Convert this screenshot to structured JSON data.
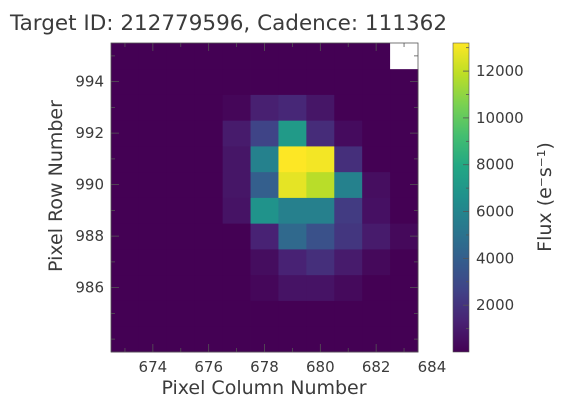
{
  "chart_data": {
    "type": "heatmap",
    "title": "Target ID: 212779596, Cadence: 111362",
    "xlabel": "Pixel Column Number",
    "ylabel": "Pixel Row Number",
    "colorbar_label": "Flux (e⁻s⁻¹)",
    "colormap": "viridis",
    "x_start": 673,
    "y_start": 984,
    "x_ticks": [
      674,
      676,
      678,
      680,
      682,
      684
    ],
    "y_ticks": [
      986,
      988,
      990,
      992,
      994
    ],
    "colorbar_ticks": [
      2000,
      4000,
      6000,
      8000,
      10000,
      12000
    ],
    "vmin": 0,
    "vmax": 13200,
    "masked_cells": [
      [
        11,
        10
      ]
    ],
    "masked_color": "#ffffff",
    "values": [
      [
        0,
        0,
        0,
        0,
        0,
        0,
        0,
        0,
        0,
        0,
        0
      ],
      [
        0,
        0,
        0,
        0,
        0,
        0,
        0,
        0,
        0,
        0,
        0
      ],
      [
        0,
        0,
        0,
        0,
        0,
        250,
        700,
        700,
        350,
        0,
        0
      ],
      [
        0,
        0,
        0,
        0,
        0,
        450,
        1300,
        1800,
        1000,
        300,
        0
      ],
      [
        0,
        0,
        0,
        0,
        0,
        1300,
        4500,
        3300,
        2100,
        1000,
        300
      ],
      [
        0,
        0,
        0,
        0,
        700,
        6800,
        5700,
        5700,
        2300,
        600,
        0
      ],
      [
        0,
        0,
        0,
        0,
        800,
        4000,
        12700,
        11800,
        5800,
        500,
        0
      ],
      [
        0,
        0,
        0,
        0,
        800,
        5800,
        13200,
        13000,
        1800,
        0,
        0
      ],
      [
        0,
        0,
        0,
        0,
        1000,
        2700,
        7200,
        1700,
        400,
        0,
        0
      ],
      [
        0,
        0,
        0,
        0,
        200,
        1200,
        1500,
        800,
        0,
        0,
        0
      ],
      [
        0,
        0,
        0,
        0,
        0,
        0,
        0,
        0,
        0,
        0,
        0
      ],
      [
        0,
        0,
        0,
        0,
        0,
        0,
        0,
        0,
        0,
        0,
        0
      ]
    ]
  }
}
